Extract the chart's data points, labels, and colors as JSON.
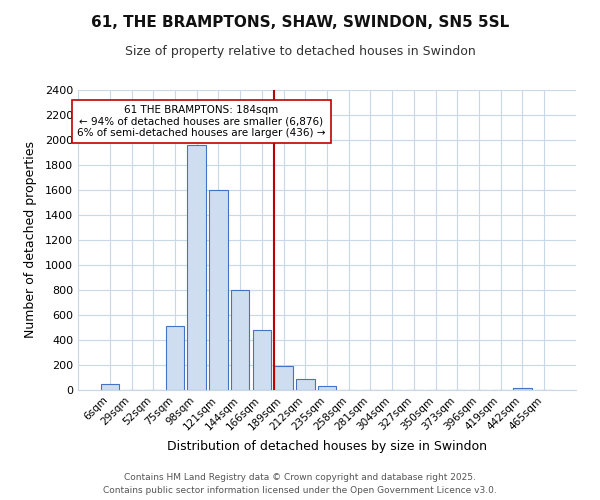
{
  "title": "61, THE BRAMPTONS, SHAW, SWINDON, SN5 5SL",
  "subtitle": "Size of property relative to detached houses in Swindon",
  "xlabel": "Distribution of detached houses by size in Swindon",
  "ylabel": "Number of detached properties",
  "categories": [
    "6sqm",
    "29sqm",
    "52sqm",
    "75sqm",
    "98sqm",
    "121sqm",
    "144sqm",
    "166sqm",
    "189sqm",
    "212sqm",
    "235sqm",
    "258sqm",
    "281sqm",
    "304sqm",
    "327sqm",
    "350sqm",
    "373sqm",
    "396sqm",
    "419sqm",
    "442sqm",
    "465sqm"
  ],
  "bar_heights": [
    50,
    0,
    0,
    510,
    1960,
    1600,
    800,
    480,
    190,
    90,
    35,
    0,
    0,
    0,
    0,
    0,
    0,
    0,
    0,
    15,
    0
  ],
  "bar_color": "#cfddf0",
  "bar_edge_color": "#4472c4",
  "highlight_line_index": 8,
  "highlight_line_color": "#c00000",
  "annotation_line1": "61 THE BRAMPTONS: 184sqm",
  "annotation_line2": "← 94% of detached houses are smaller (6,876)",
  "annotation_line3": "6% of semi-detached houses are larger (436) →",
  "annotation_box_edge": "#c00000",
  "ylim": [
    0,
    2400
  ],
  "yticks": [
    0,
    200,
    400,
    600,
    800,
    1000,
    1200,
    1400,
    1600,
    1800,
    2000,
    2200,
    2400
  ],
  "footer_line1": "Contains HM Land Registry data © Crown copyright and database right 2025.",
  "footer_line2": "Contains public sector information licensed under the Open Government Licence v3.0.",
  "background_color": "#ffffff",
  "plot_background": "#ffffff",
  "grid_color": "#c8d8e8"
}
